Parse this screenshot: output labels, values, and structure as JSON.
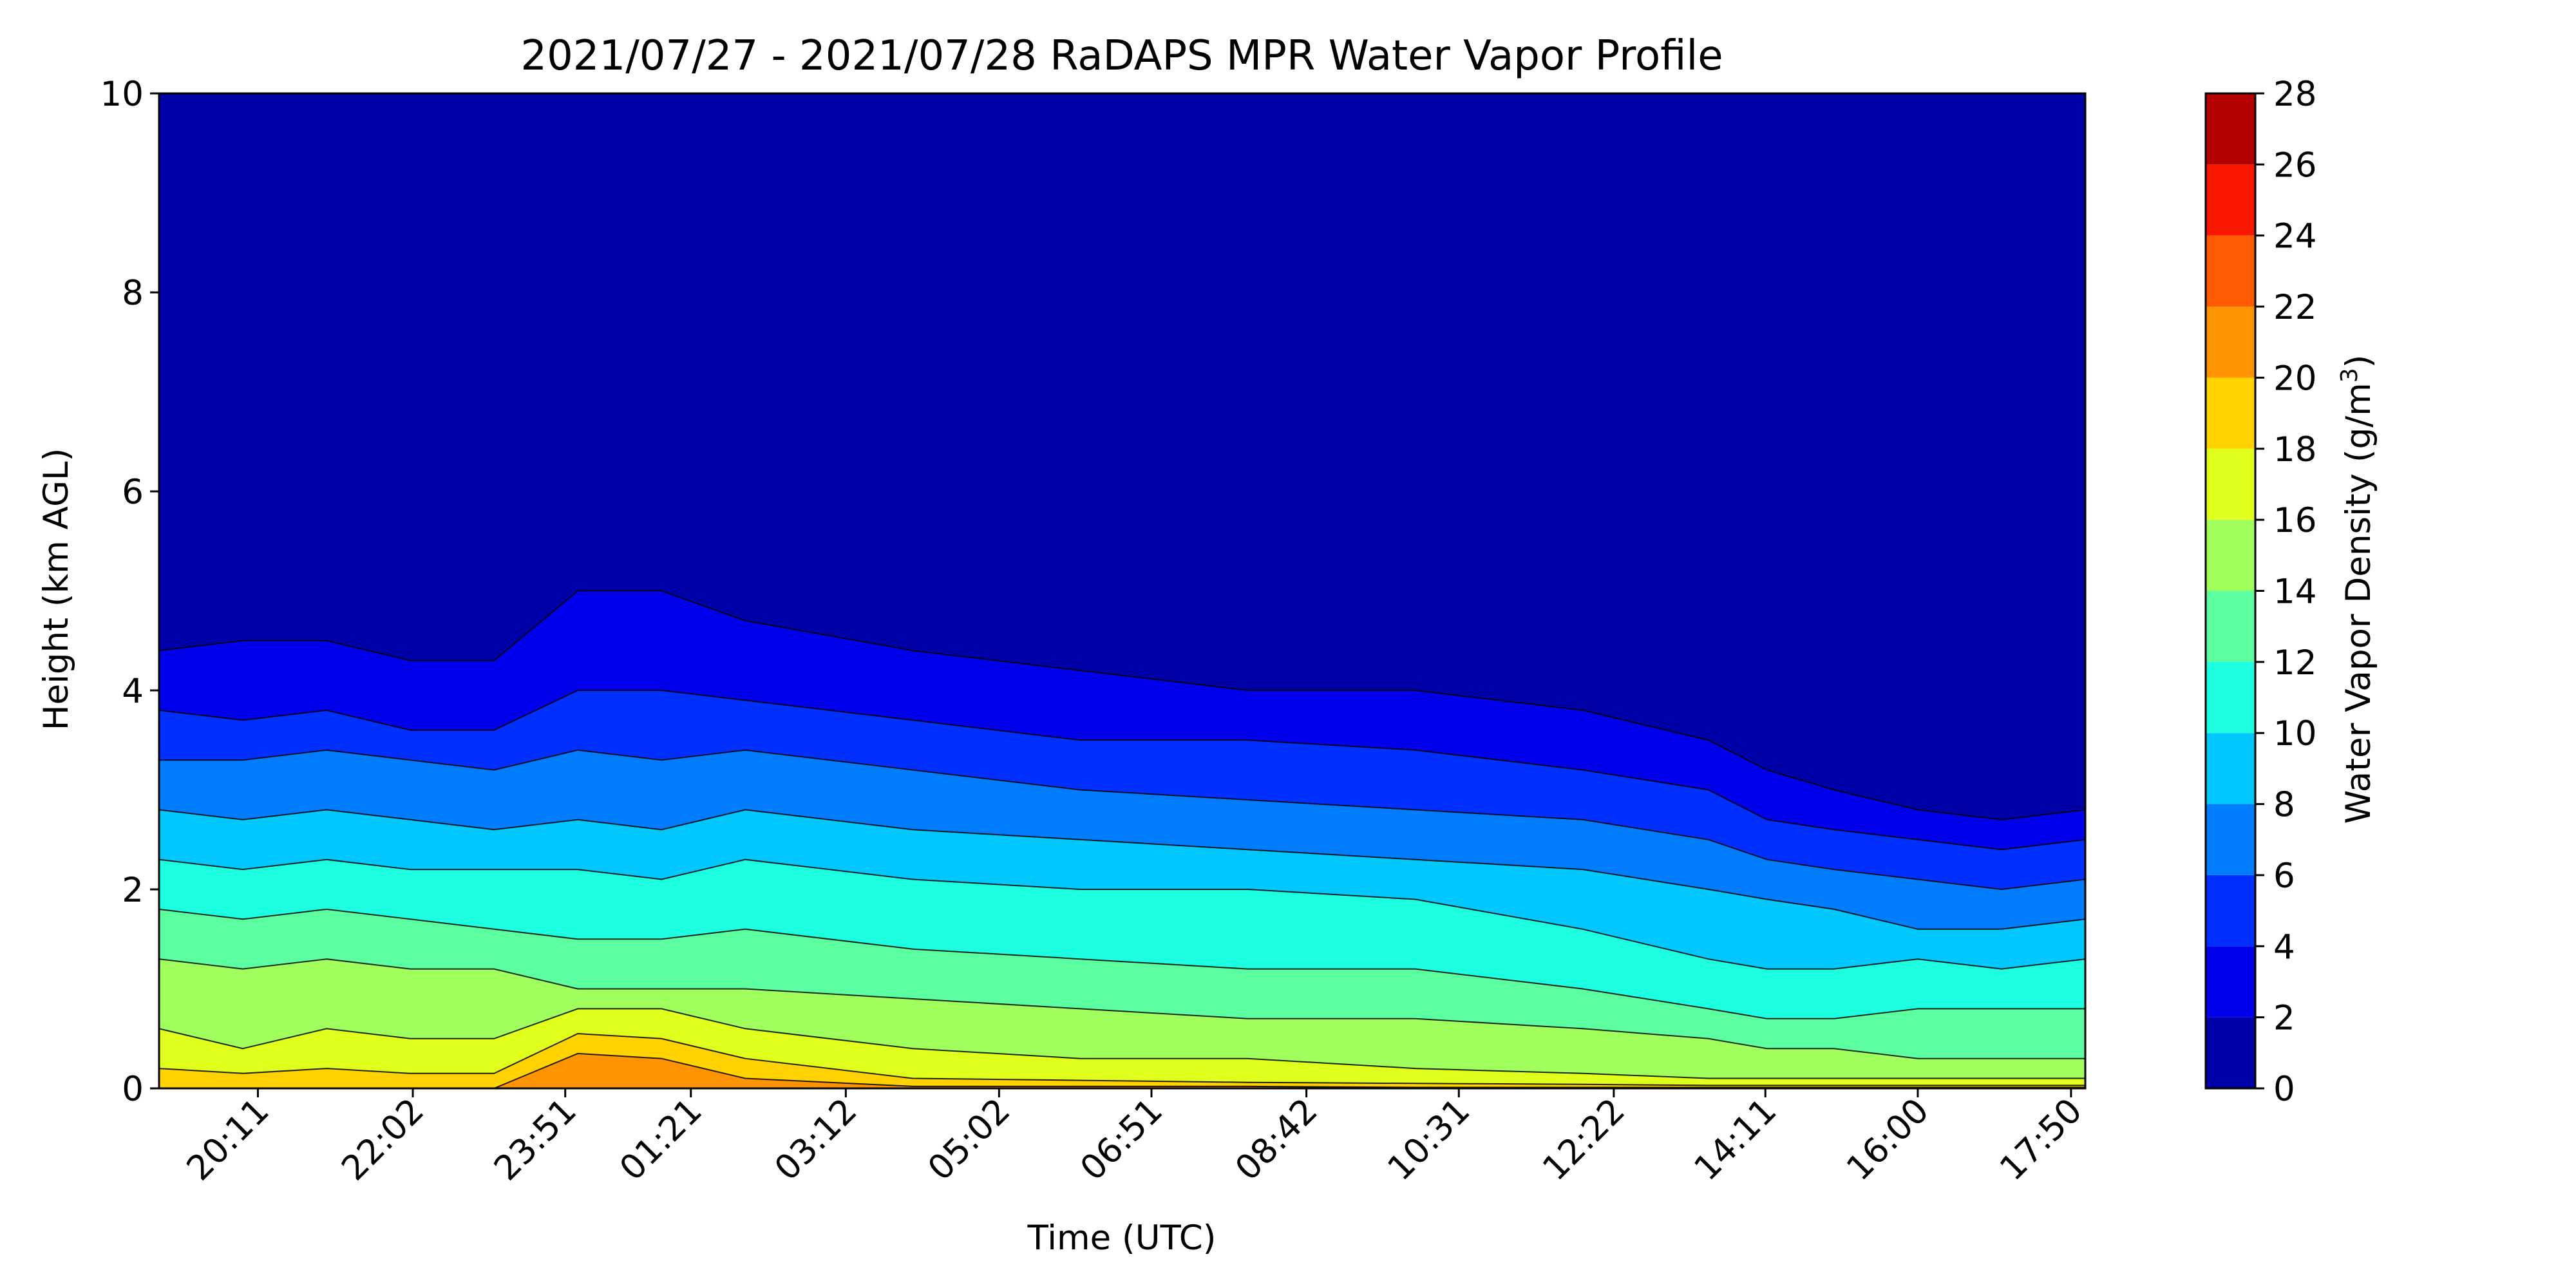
{
  "chart_data": {
    "type": "heatmap",
    "subtype": "filled-contour",
    "title": "2021/07/27 - 2021/07/28 RaDAPS MPR Water Vapor Profile",
    "xlabel": "Time (UTC)",
    "ylabel": "Height (km AGL)",
    "colorbar_label_base": "Water Vapor Density (g/m",
    "colorbar_label_sup": "3",
    "colorbar_label_end": ")",
    "x_tick_labels": [
      "20:11",
      "22:02",
      "23:51",
      "01:21",
      "03:12",
      "05:02",
      "06:51",
      "08:42",
      "10:31",
      "12:22",
      "14:11",
      "16:00",
      "17:50"
    ],
    "xlim_hours": [
      19.0,
      42.0
    ],
    "x_tick_hours": [
      20.18,
      22.03,
      23.85,
      25.35,
      27.2,
      29.03,
      30.85,
      32.7,
      34.52,
      36.37,
      38.18,
      40.0,
      41.83
    ],
    "ylim": [
      0,
      10
    ],
    "y_ticks": [
      0,
      2,
      4,
      6,
      8,
      10
    ],
    "colorbar_ticks": [
      0,
      2,
      4,
      6,
      8,
      10,
      12,
      14,
      16,
      18,
      20,
      22,
      24,
      26,
      28
    ],
    "levels": [
      0,
      2,
      4,
      6,
      8,
      10,
      12,
      14,
      16,
      18,
      20,
      22,
      24,
      26,
      28
    ],
    "level_colors": [
      "#0000a8",
      "#0000ec",
      "#0030ff",
      "#007cff",
      "#00c8ff",
      "#1cffe0",
      "#5cffa0",
      "#a0ff5c",
      "#e0ff1c",
      "#ffd200",
      "#ff9400",
      "#ff5a00",
      "#f81800",
      "#b40000"
    ],
    "contour_heights_km": {
      "hours": [
        19.0,
        20.0,
        21.0,
        22.0,
        23.0,
        24.0,
        25.0,
        26.0,
        28.0,
        30.0,
        32.0,
        34.0,
        36.0,
        37.5,
        38.2,
        39.0,
        40.0,
        41.0,
        42.0
      ],
      "bounds": [
        {
          "level": 2,
          "heights": [
            4.4,
            4.5,
            4.5,
            4.3,
            4.3,
            5.0,
            5.0,
            4.7,
            4.4,
            4.2,
            4.0,
            4.0,
            3.8,
            3.5,
            3.2,
            3.0,
            2.8,
            2.7,
            2.8
          ]
        },
        {
          "level": 4,
          "heights": [
            3.8,
            3.7,
            3.8,
            3.6,
            3.6,
            4.0,
            4.0,
            3.9,
            3.7,
            3.5,
            3.5,
            3.4,
            3.2,
            3.0,
            2.7,
            2.6,
            2.5,
            2.4,
            2.5
          ]
        },
        {
          "level": 6,
          "heights": [
            3.3,
            3.3,
            3.4,
            3.3,
            3.2,
            3.4,
            3.3,
            3.4,
            3.2,
            3.0,
            2.9,
            2.8,
            2.7,
            2.5,
            2.3,
            2.2,
            2.1,
            2.0,
            2.1
          ]
        },
        {
          "level": 8,
          "heights": [
            2.8,
            2.7,
            2.8,
            2.7,
            2.6,
            2.7,
            2.6,
            2.8,
            2.6,
            2.5,
            2.4,
            2.3,
            2.2,
            2.0,
            1.9,
            1.8,
            1.6,
            1.6,
            1.7
          ]
        },
        {
          "level": 10,
          "heights": [
            2.3,
            2.2,
            2.3,
            2.2,
            2.2,
            2.2,
            2.1,
            2.3,
            2.1,
            2.0,
            2.0,
            1.9,
            1.6,
            1.3,
            1.2,
            1.2,
            1.3,
            1.2,
            1.3
          ]
        },
        {
          "level": 12,
          "heights": [
            1.8,
            1.7,
            1.8,
            1.7,
            1.6,
            1.5,
            1.5,
            1.6,
            1.4,
            1.3,
            1.2,
            1.2,
            1.0,
            0.8,
            0.7,
            0.7,
            0.8,
            0.8,
            0.8
          ]
        },
        {
          "level": 14,
          "heights": [
            1.3,
            1.2,
            1.3,
            1.2,
            1.2,
            1.0,
            1.0,
            1.0,
            0.9,
            0.8,
            0.7,
            0.7,
            0.6,
            0.5,
            0.4,
            0.4,
            0.3,
            0.3,
            0.3
          ]
        },
        {
          "level": 16,
          "heights": [
            0.6,
            0.4,
            0.6,
            0.5,
            0.5,
            0.8,
            0.8,
            0.6,
            0.4,
            0.3,
            0.3,
            0.2,
            0.15,
            0.1,
            0.1,
            0.1,
            0.1,
            0.1,
            0.1
          ]
        },
        {
          "level": 18,
          "heights": [
            0.2,
            0.15,
            0.2,
            0.15,
            0.15,
            0.55,
            0.5,
            0.3,
            0.1,
            0.08,
            0.06,
            0.05,
            0.04,
            0.03,
            0.03,
            0.03,
            0.03,
            0.03,
            0.03
          ]
        },
        {
          "level": 20,
          "heights": [
            0.0,
            0.0,
            0.0,
            0.0,
            0.0,
            0.35,
            0.3,
            0.1,
            0.02,
            0.02,
            0.02,
            0.01,
            0.01,
            0.01,
            0.01,
            0.01,
            0.01,
            0.01,
            0.01
          ]
        }
      ]
    },
    "grid": false,
    "colorbar_position": "right"
  }
}
